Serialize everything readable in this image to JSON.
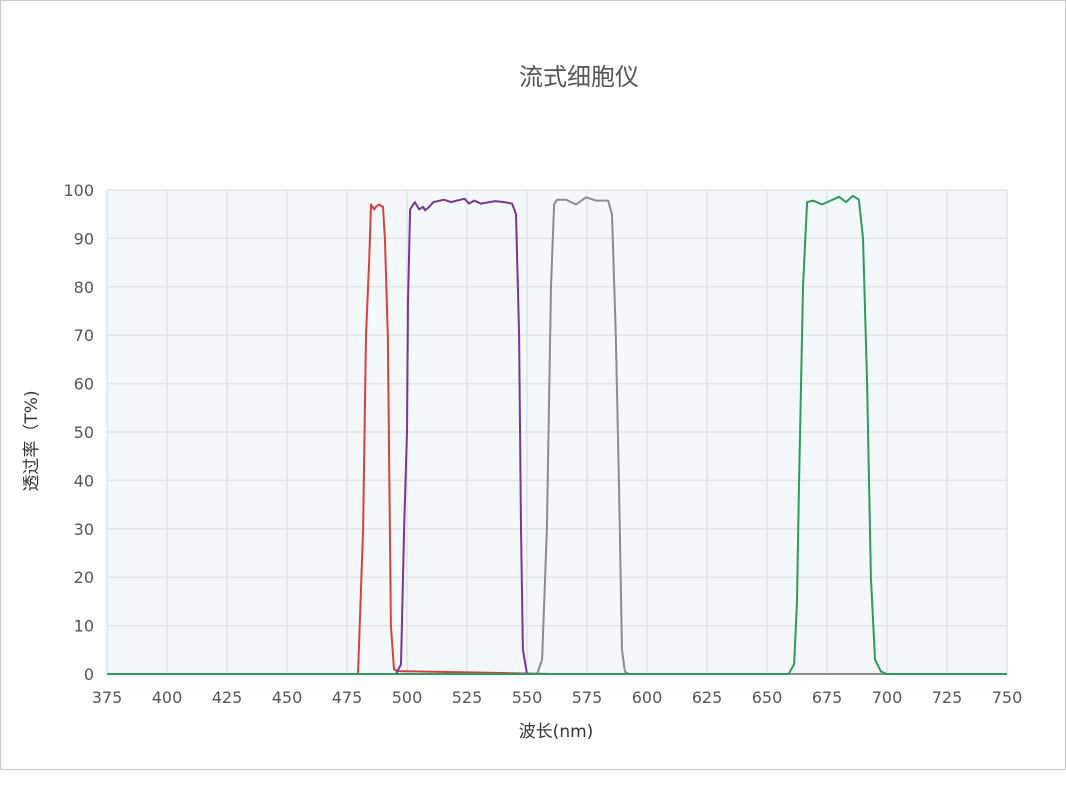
{
  "chart_data": {
    "type": "line",
    "title": "流式细胞仪",
    "xlabel": "波长(nm)",
    "ylabel": "透过率（T%)",
    "xlim": [
      375,
      750
    ],
    "ylim": [
      0,
      100
    ],
    "xticks": [
      375,
      400,
      425,
      450,
      475,
      500,
      525,
      550,
      575,
      600,
      625,
      650,
      675,
      700,
      725,
      750
    ],
    "yticks": [
      0,
      10,
      20,
      30,
      40,
      50,
      60,
      70,
      80,
      90,
      100
    ],
    "grid": true,
    "plot_background": "#f3f8fb",
    "series": [
      {
        "color": "#d9403f",
        "points": [
          [
            375,
            0
          ],
          [
            479.6,
            0
          ],
          [
            481.7,
            30
          ],
          [
            482.9,
            70
          ],
          [
            484.2,
            85
          ],
          [
            485,
            97
          ],
          [
            486.3,
            96
          ],
          [
            487,
            96.5
          ],
          [
            488.3,
            97
          ],
          [
            490,
            96.5
          ],
          [
            490.8,
            90
          ],
          [
            492,
            70
          ],
          [
            493.3,
            10
          ],
          [
            494.6,
            1
          ],
          [
            496,
            0.6
          ],
          [
            520,
            0.4
          ],
          [
            560,
            0
          ],
          [
            750,
            0
          ]
        ]
      },
      {
        "color": "#7b3596",
        "points": [
          [
            375,
            0
          ],
          [
            495.4,
            0
          ],
          [
            497.5,
            2
          ],
          [
            498.8,
            30
          ],
          [
            500,
            50
          ],
          [
            500.4,
            77
          ],
          [
            501.3,
            96
          ],
          [
            503.3,
            97.5
          ],
          [
            505,
            96
          ],
          [
            506.7,
            96.5
          ],
          [
            507.5,
            95.8
          ],
          [
            509.2,
            96.5
          ],
          [
            511,
            97.5
          ],
          [
            515.4,
            98
          ],
          [
            518.3,
            97.5
          ],
          [
            524,
            98.2
          ],
          [
            525.8,
            97.2
          ],
          [
            527.9,
            97.8
          ],
          [
            530.8,
            97.2
          ],
          [
            536.7,
            97.7
          ],
          [
            540.4,
            97.5
          ],
          [
            543.8,
            97.2
          ],
          [
            545.4,
            95
          ],
          [
            546.7,
            70
          ],
          [
            547.5,
            30
          ],
          [
            548.3,
            5
          ],
          [
            550,
            0
          ],
          [
            750,
            0
          ]
        ]
      },
      {
        "color": "#8c8c8c",
        "points": [
          [
            375,
            0
          ],
          [
            554.2,
            0
          ],
          [
            556.3,
            3
          ],
          [
            558.3,
            30
          ],
          [
            560,
            80
          ],
          [
            561.3,
            97
          ],
          [
            562.5,
            98
          ],
          [
            566.3,
            98
          ],
          [
            570.4,
            97
          ],
          [
            574.6,
            98.5
          ],
          [
            578.8,
            97.8
          ],
          [
            583.8,
            97.8
          ],
          [
            585.4,
            95
          ],
          [
            587,
            70
          ],
          [
            588.3,
            40
          ],
          [
            589.6,
            5
          ],
          [
            590.8,
            0.5
          ],
          [
            592.5,
            0
          ],
          [
            750,
            0
          ]
        ]
      },
      {
        "color": "#2e9b5e",
        "points": [
          [
            375,
            0
          ],
          [
            659,
            0
          ],
          [
            661.3,
            2
          ],
          [
            662.5,
            15
          ],
          [
            663.3,
            38
          ],
          [
            665,
            80
          ],
          [
            666.7,
            97.5
          ],
          [
            669.2,
            97.8
          ],
          [
            672.9,
            97
          ],
          [
            680,
            98.6
          ],
          [
            682.9,
            97.5
          ],
          [
            685.8,
            98.8
          ],
          [
            688.3,
            98
          ],
          [
            690,
            90
          ],
          [
            691.7,
            60
          ],
          [
            693.3,
            20
          ],
          [
            695,
            3
          ],
          [
            697.5,
            0.5
          ],
          [
            700,
            0
          ],
          [
            750,
            0
          ]
        ]
      }
    ]
  }
}
